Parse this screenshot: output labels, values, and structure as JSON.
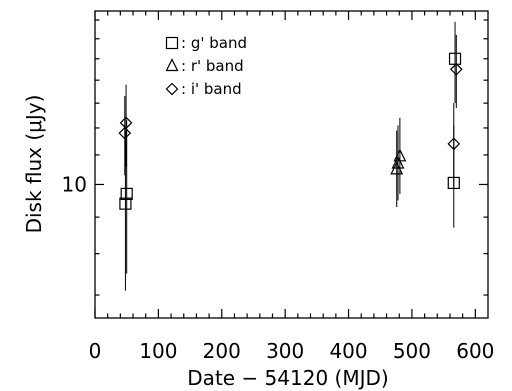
{
  "chart_data": {
    "type": "scatter",
    "title": "",
    "xlabel": "Date − 54120 (MJD)",
    "ylabel": "Disk flux (μJy)",
    "xlim": [
      0,
      620
    ],
    "ylim": [
      6.5,
      17.5
    ],
    "y_scale": "log",
    "xticks": [
      0,
      100,
      200,
      300,
      400,
      500,
      600
    ],
    "xtick_labels": [
      "0",
      "100",
      "200",
      "300",
      "400",
      "500",
      "600"
    ],
    "yticks_major": [
      10
    ],
    "ytick_labels": [
      "10"
    ],
    "grid": false,
    "legend_position": "top-left",
    "series": [
      {
        "name": "g' band",
        "marker": "square",
        "points": [
          {
            "x": 48,
            "y": 9.4,
            "err_low": 7.1,
            "err_high": 11.9
          },
          {
            "x": 50,
            "y": 9.7,
            "err_low": 7.5,
            "err_high": 12.3
          },
          {
            "x": 566,
            "y": 10.05,
            "err_low": 8.7,
            "err_high": 12.1
          },
          {
            "x": 568,
            "y": 15.0,
            "err_low": 13.0,
            "err_high": 16.9
          }
        ]
      },
      {
        "name": "r' band",
        "marker": "triangle",
        "points": [
          {
            "x": 476,
            "y": 10.5,
            "err_low": 9.3,
            "err_high": 11.9
          },
          {
            "x": 478,
            "y": 10.7,
            "err_low": 9.5,
            "err_high": 12.1
          },
          {
            "x": 481,
            "y": 10.95,
            "err_low": 9.7,
            "err_high": 12.4
          }
        ]
      },
      {
        "name": "i' band",
        "marker": "diamond",
        "points": [
          {
            "x": 47,
            "y": 11.8,
            "err_low": 10.3,
            "err_high": 13.3
          },
          {
            "x": 49,
            "y": 12.2,
            "err_low": 10.6,
            "err_high": 13.8
          },
          {
            "x": 566,
            "y": 11.4,
            "err_low": 9.9,
            "err_high": 13.0
          },
          {
            "x": 570,
            "y": 14.5,
            "err_low": 12.8,
            "err_high": 16.2
          }
        ]
      }
    ]
  }
}
